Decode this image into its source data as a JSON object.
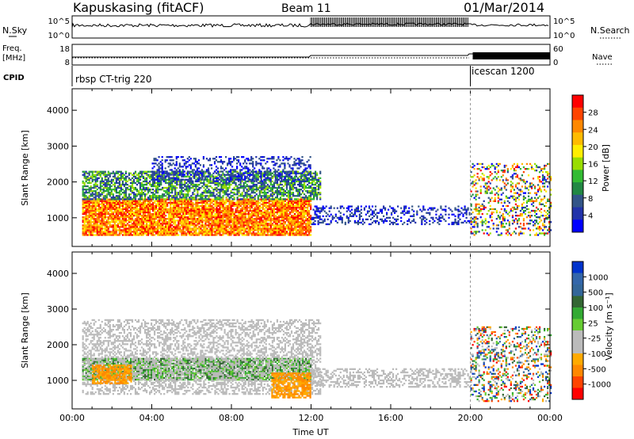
{
  "header": {
    "station": "Kapuskasing (fitACF)",
    "beam": "Beam 11",
    "date": "01/Mar/2014"
  },
  "strips": {
    "nsky": {
      "label": "N.Sky",
      "ticks": [
        "10^5",
        "10^0"
      ],
      "right_label": "N.Search",
      "right_ticks": [
        "10^5",
        "10^0"
      ]
    },
    "freq": {
      "label_line1": "Freq.",
      "label_line2": "[MHz]",
      "ticks": [
        "18",
        "8"
      ],
      "right_label": "Nave",
      "right_ticks": [
        "60",
        "0"
      ]
    },
    "cpid": {
      "label": "CPID",
      "modes": [
        "rbsp CT-trig 220",
        "icescan 1200"
      ],
      "mode_change_hour": 20.0
    }
  },
  "colorbars": {
    "power": {
      "label": "Power [dB]",
      "ticks": [
        "28",
        "24",
        "20",
        "16",
        "12",
        "8",
        "4"
      ],
      "colors": [
        "#ff0000",
        "#ff4400",
        "#ff8800",
        "#ffbb00",
        "#ffee00",
        "#99dd00",
        "#33bb33",
        "#228844",
        "#335588",
        "#2233aa",
        "#0000ff"
      ]
    },
    "velocity": {
      "label": "Velocity [m s⁻¹]",
      "ticks": [
        "1000",
        "500",
        "100",
        "25",
        "-25",
        "-100",
        "-500",
        "-1000"
      ],
      "colors": [
        "#0033cc",
        "#3366aa",
        "#336699",
        "#336633",
        "#33aa33",
        "#66cc33",
        "#bbbbbb",
        "#bbbbbb",
        "#ffaa00",
        "#ff8800",
        "#ff4400",
        "#ff0000"
      ]
    }
  },
  "chart_data": [
    {
      "type": "heatmap",
      "panel": "power",
      "ylabel": "Slant Range [km]",
      "xlabel": "",
      "xlim": [
        0,
        24
      ],
      "ylim": [
        200,
        4600
      ],
      "yticks": [
        "1000",
        "2000",
        "3000",
        "4000"
      ],
      "echo_regions": [
        {
          "x": [
            0.5,
            12.0
          ],
          "y": [
            500,
            1500
          ],
          "level": "high"
        },
        {
          "x": [
            0.5,
            12.5
          ],
          "y": [
            1500,
            2300
          ],
          "level": "medium"
        },
        {
          "x": [
            4.0,
            12.0
          ],
          "y": [
            2000,
            2700
          ],
          "level": "low"
        },
        {
          "x": [
            12.0,
            20.0
          ],
          "y": [
            800,
            1300
          ],
          "level": "low"
        },
        {
          "x": [
            20.0,
            24.0
          ],
          "y": [
            500,
            2500
          ],
          "level": "mixed"
        }
      ]
    },
    {
      "type": "heatmap",
      "panel": "velocity",
      "ylabel": "Slant Range [km]",
      "xlabel": "Time UT",
      "xlim": [
        0,
        24
      ],
      "ylim": [
        200,
        4600
      ],
      "xticks": [
        "00:00",
        "04:00",
        "08:00",
        "12:00",
        "16:00",
        "20:00",
        "00:00"
      ],
      "yticks": [
        "1000",
        "2000",
        "3000",
        "4000"
      ],
      "echo_regions": [
        {
          "x": [
            0.5,
            12.0
          ],
          "y": [
            1000,
            1600
          ],
          "level": "100"
        },
        {
          "x": [
            0.5,
            12.5
          ],
          "y": [
            600,
            2700
          ],
          "level": "25"
        },
        {
          "x": [
            1.0,
            3.0
          ],
          "y": [
            900,
            1400
          ],
          "level": "-100"
        },
        {
          "x": [
            10.0,
            12.0
          ],
          "y": [
            500,
            1200
          ],
          "level": "-100"
        },
        {
          "x": [
            12.0,
            20.0
          ],
          "y": [
            800,
            1300
          ],
          "level": "25"
        },
        {
          "x": [
            20.0,
            24.0
          ],
          "y": [
            400,
            2500
          ],
          "level": "mixed"
        }
      ]
    }
  ]
}
